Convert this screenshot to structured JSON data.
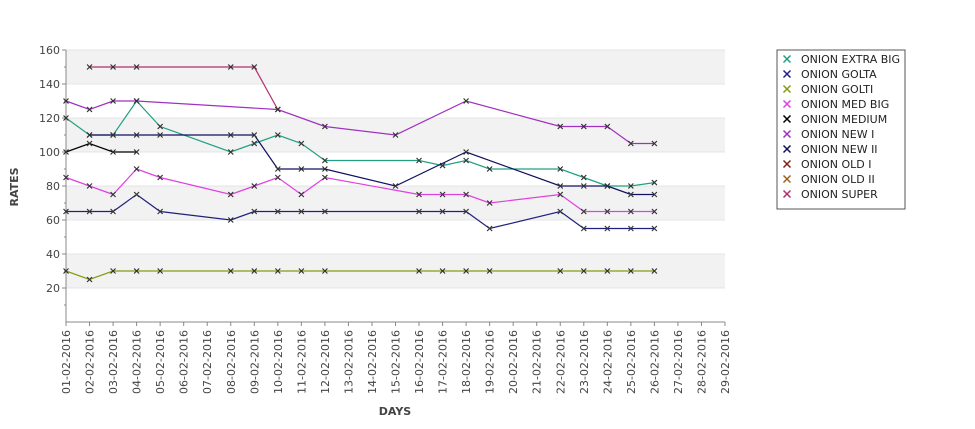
{
  "chart_data": {
    "type": "line",
    "title": "",
    "xlabel": "DAYS",
    "ylabel": "RATES",
    "ylim": [
      0,
      160
    ],
    "yticks": [
      20,
      40,
      60,
      80,
      100,
      120,
      140,
      160
    ],
    "grid": "alternating horizontal bands",
    "legend_position": "right",
    "categories": [
      "01-02-2016",
      "02-02-2016",
      "03-02-2016",
      "04-02-2016",
      "05-02-2016",
      "06-02-2016",
      "07-02-2016",
      "08-02-2016",
      "09-02-2016",
      "10-02-2016",
      "11-02-2016",
      "12-02-2016",
      "13-02-2016",
      "14-02-2016",
      "15-02-2016",
      "16-02-2016",
      "17-02-2016",
      "18-02-2016",
      "19-02-2016",
      "20-02-2016",
      "21-02-2016",
      "22-02-2016",
      "23-02-2016",
      "24-02-2016",
      "25-02-2016",
      "26-02-2016",
      "27-02-2016",
      "28-02-2016",
      "29-02-2016"
    ],
    "series": [
      {
        "name": "ONION EXTRA BIG",
        "color": "#20a080",
        "values": [
          120,
          110,
          110,
          130,
          115,
          null,
          null,
          100,
          105,
          110,
          105,
          95,
          null,
          null,
          null,
          95,
          92,
          95,
          90,
          null,
          null,
          90,
          85,
          80,
          80,
          82,
          null,
          null,
          null
        ]
      },
      {
        "name": "ONION GOLTA",
        "color": "#202080",
        "values": [
          65,
          65,
          65,
          75,
          65,
          null,
          null,
          60,
          65,
          65,
          65,
          65,
          null,
          null,
          null,
          65,
          65,
          65,
          55,
          null,
          null,
          65,
          55,
          55,
          55,
          55,
          null,
          null,
          null
        ]
      },
      {
        "name": "ONION GOLTI",
        "color": "#8a9a10",
        "values": [
          30,
          25,
          30,
          30,
          30,
          null,
          null,
          30,
          30,
          30,
          30,
          30,
          null,
          null,
          null,
          30,
          30,
          30,
          30,
          null,
          null,
          30,
          30,
          30,
          30,
          30,
          null,
          null,
          null
        ]
      },
      {
        "name": "ONION MED BIG",
        "color": "#e040e0",
        "values": [
          85,
          80,
          75,
          90,
          85,
          null,
          null,
          75,
          80,
          85,
          75,
          85,
          null,
          null,
          null,
          75,
          75,
          75,
          70,
          null,
          null,
          75,
          65,
          65,
          65,
          65,
          null,
          null,
          null
        ]
      },
      {
        "name": "ONION MEDIUM",
        "color": "#000000",
        "values": [
          100,
          105,
          100,
          100,
          null,
          null,
          null,
          null,
          null,
          null,
          null,
          null,
          null,
          null,
          null,
          null,
          null,
          null,
          null,
          null,
          null,
          null,
          null,
          null,
          null,
          null,
          null,
          null,
          null
        ]
      },
      {
        "name": "ONION NEW I",
        "color": "#a030c0",
        "values": [
          130,
          125,
          130,
          130,
          null,
          null,
          null,
          null,
          null,
          125,
          null,
          115,
          null,
          null,
          110,
          null,
          null,
          130,
          null,
          null,
          null,
          115,
          115,
          115,
          105,
          105,
          null,
          null,
          null
        ]
      },
      {
        "name": "ONION NEW II",
        "color": "#101060",
        "values": [
          null,
          110,
          110,
          110,
          110,
          null,
          null,
          110,
          110,
          90,
          90,
          90,
          null,
          null,
          80,
          null,
          null,
          100,
          null,
          null,
          null,
          80,
          80,
          80,
          75,
          75,
          null,
          null,
          null
        ]
      },
      {
        "name": "ONION OLD I",
        "color": "#802010",
        "values": [
          null,
          null,
          null,
          null,
          null,
          null,
          null,
          null,
          null,
          null,
          null,
          null,
          null,
          null,
          null,
          null,
          null,
          null,
          null,
          null,
          null,
          null,
          null,
          null,
          null,
          null,
          null,
          null,
          null
        ]
      },
      {
        "name": "ONION OLD II",
        "color": "#a06020",
        "values": [
          null,
          null,
          null,
          null,
          null,
          null,
          null,
          null,
          null,
          null,
          null,
          null,
          null,
          null,
          null,
          null,
          null,
          null,
          null,
          null,
          null,
          null,
          null,
          null,
          null,
          null,
          null,
          null,
          null
        ]
      },
      {
        "name": "ONION SUPER",
        "color": "#b03070",
        "values": [
          null,
          150,
          150,
          150,
          null,
          null,
          null,
          150,
          150,
          125,
          null,
          null,
          null,
          null,
          null,
          null,
          null,
          null,
          null,
          null,
          null,
          null,
          null,
          null,
          null,
          null,
          null,
          null,
          null
        ]
      }
    ]
  }
}
